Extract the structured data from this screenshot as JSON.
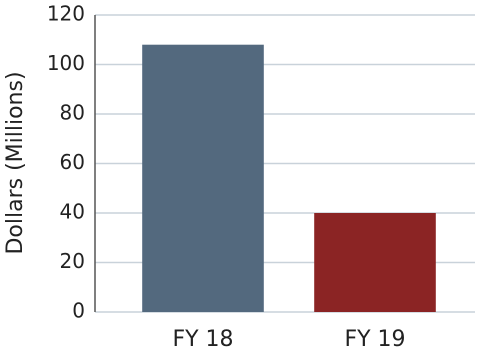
{
  "chart_data": {
    "type": "bar",
    "y_label": "Dollars (Millions)",
    "categories": [
      "FY 18",
      "FY 19"
    ],
    "values": [
      108,
      40
    ],
    "colors": [
      "#53697e",
      "#8b2424"
    ],
    "ylim": [
      0,
      120
    ],
    "yticks": [
      0,
      20,
      40,
      60,
      80,
      100,
      120
    ],
    "grid": true
  }
}
